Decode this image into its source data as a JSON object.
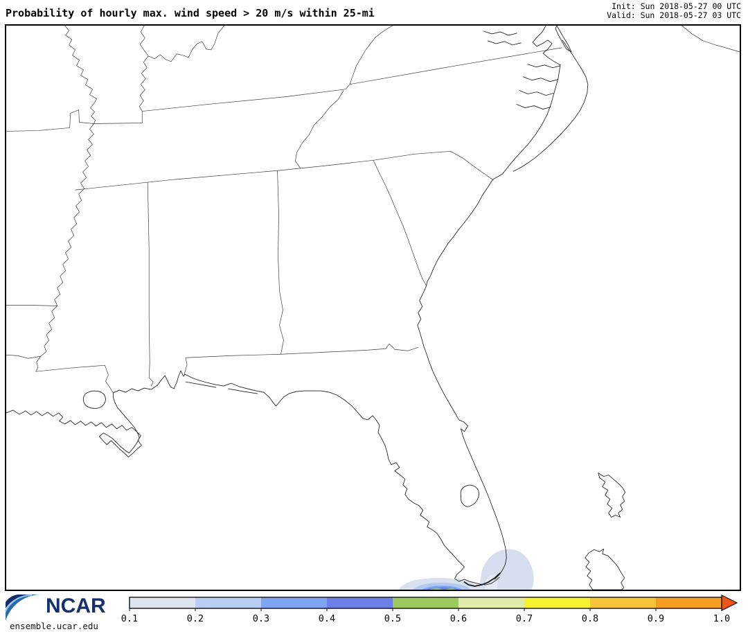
{
  "header": {
    "title": "Probability of hourly max. wind speed > 20 m/s within 25-mi",
    "init": "Init: Sun 2018-05-27 00 UTC",
    "valid": "Valid: Sun 2018-05-27 03 UTC"
  },
  "branding": {
    "org": "NCAR",
    "url": "ensemble.ucar.edu"
  },
  "colorbar": {
    "tick_labels": [
      "0.1",
      "0.2",
      "0.3",
      "0.4",
      "0.5",
      "0.6",
      "0.7",
      "0.8",
      "0.9",
      "1.0"
    ],
    "segment_colors": [
      "#dde4ef",
      "#b9cdf3",
      "#7fa5f2",
      "#6f7fe8",
      "#9cc95e",
      "#e0ecaa",
      "#f7f22e",
      "#f6c339",
      "#f79f23"
    ],
    "arrow_color": "#f05513",
    "outline_color": "#111111"
  },
  "chart_data": {
    "type": "heatmap",
    "title": "Probability of hourly max. wind speed > 20 m/s within 25-mi",
    "legend_ticks": [
      0.1,
      0.2,
      0.3,
      0.4,
      0.5,
      0.6,
      0.7,
      0.8,
      0.9,
      1.0
    ],
    "legend_position": "bottom",
    "region": "Southeastern United States and northwest Bahamas",
    "shaded_areas": [
      {
        "location": "south of Florida Keys, left lobe at bottom map edge",
        "max_probability": 0.5
      },
      {
        "location": "Miami / Biscayne Bay area, right lobe at bottom map edge",
        "max_probability": 0.2
      }
    ]
  }
}
